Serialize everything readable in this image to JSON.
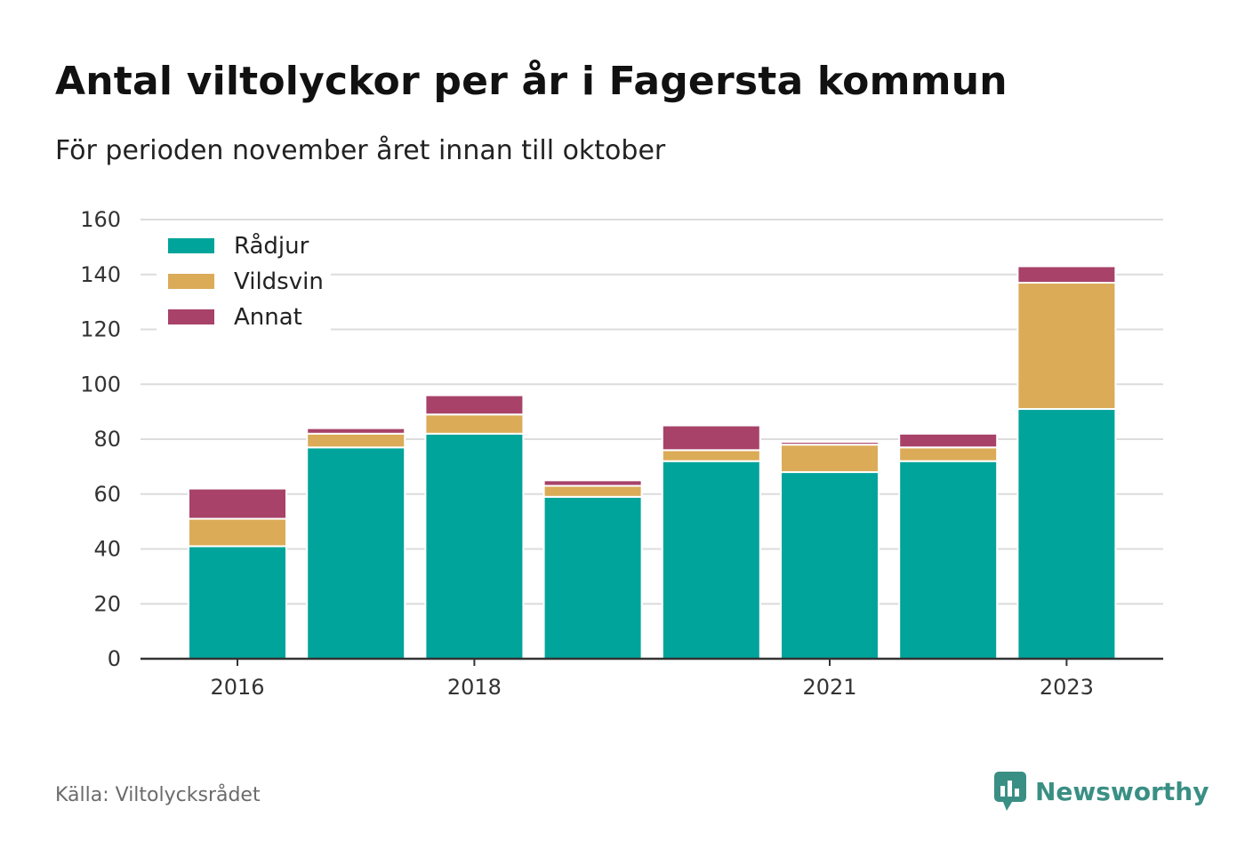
{
  "title": "Antal viltolyckor per år i Fagersta kommun",
  "subtitle": "För perioden november året innan till oktober",
  "source": "Källa: Viltolycksrådet",
  "brand": {
    "name": "Newsworthy",
    "icon": "newsworthy-logo-icon",
    "color": "#3a8f84"
  },
  "chart_data": {
    "type": "bar",
    "stacked": true,
    "categories": [
      "2016",
      "2017",
      "2018",
      "2019",
      "2020",
      "2021",
      "2022",
      "2023"
    ],
    "x_tick_labels": [
      "2016",
      "",
      "2018",
      "",
      "",
      "2021",
      "",
      "2023"
    ],
    "series": [
      {
        "name": "Rådjur",
        "color": "#00a49a",
        "values": [
          41,
          77,
          82,
          59,
          72,
          68,
          72,
          91
        ]
      },
      {
        "name": "Vildsvin",
        "color": "#dbab58",
        "values": [
          10,
          5,
          7,
          4,
          4,
          10,
          5,
          46
        ]
      },
      {
        "name": "Annat",
        "color": "#a84269",
        "values": [
          11,
          2,
          7,
          2,
          9,
          1,
          5,
          6
        ]
      }
    ],
    "ylim": [
      0,
      160
    ],
    "yticks": [
      0,
      20,
      40,
      60,
      80,
      100,
      120,
      140,
      160
    ],
    "grid": true,
    "legend_position": "top-left",
    "xlabel": "",
    "ylabel": ""
  }
}
